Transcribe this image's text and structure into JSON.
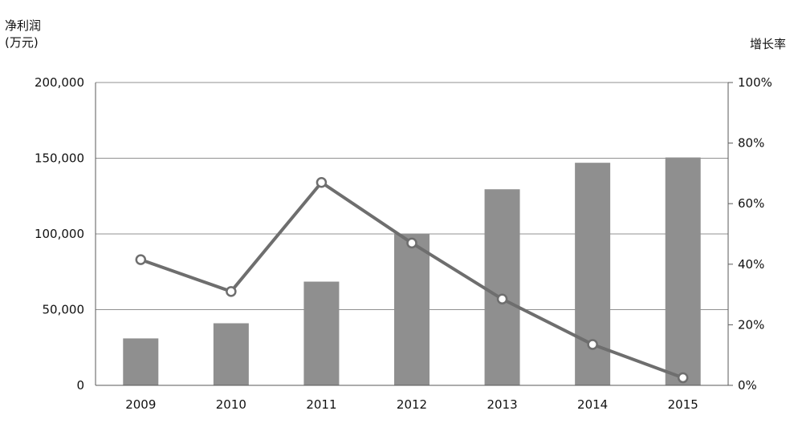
{
  "chart_data": {
    "type": "bar",
    "title": "",
    "xlabel": "",
    "ylabel": "净利润(万元)",
    "ylabel_lines": [
      "净利润",
      "(万元)"
    ],
    "y2label": "增长率",
    "categories": [
      "2009",
      "2010",
      "2011",
      "2012",
      "2013",
      "2014",
      "2015"
    ],
    "ylim": [
      0,
      200000
    ],
    "y_ticks": [
      0,
      50000,
      100000,
      150000,
      200000
    ],
    "y_tick_labels": [
      "0",
      "50,000",
      "100,000",
      "150,000",
      "200,000"
    ],
    "y2lim": [
      0,
      100
    ],
    "y2_ticks": [
      0,
      20,
      40,
      60,
      80,
      100
    ],
    "y2_tick_labels": [
      "0%",
      "20%",
      "40%",
      "60%",
      "80%",
      "100%"
    ],
    "series": [
      {
        "type": "bar",
        "axis": "left",
        "values": [
          31000,
          41000,
          68500,
          100000,
          129500,
          147000,
          150500
        ]
      },
      {
        "type": "line",
        "axis": "right",
        "values": [
          41.5,
          31,
          67,
          47,
          28.5,
          13.5,
          2.5
        ]
      }
    ],
    "grid": true,
    "colors": {
      "bar": "#8f8f8f",
      "line": "#6e6e6e",
      "marker_fill": "#ffffff",
      "grid": "#909090",
      "axis": "#5a5a5a"
    }
  }
}
